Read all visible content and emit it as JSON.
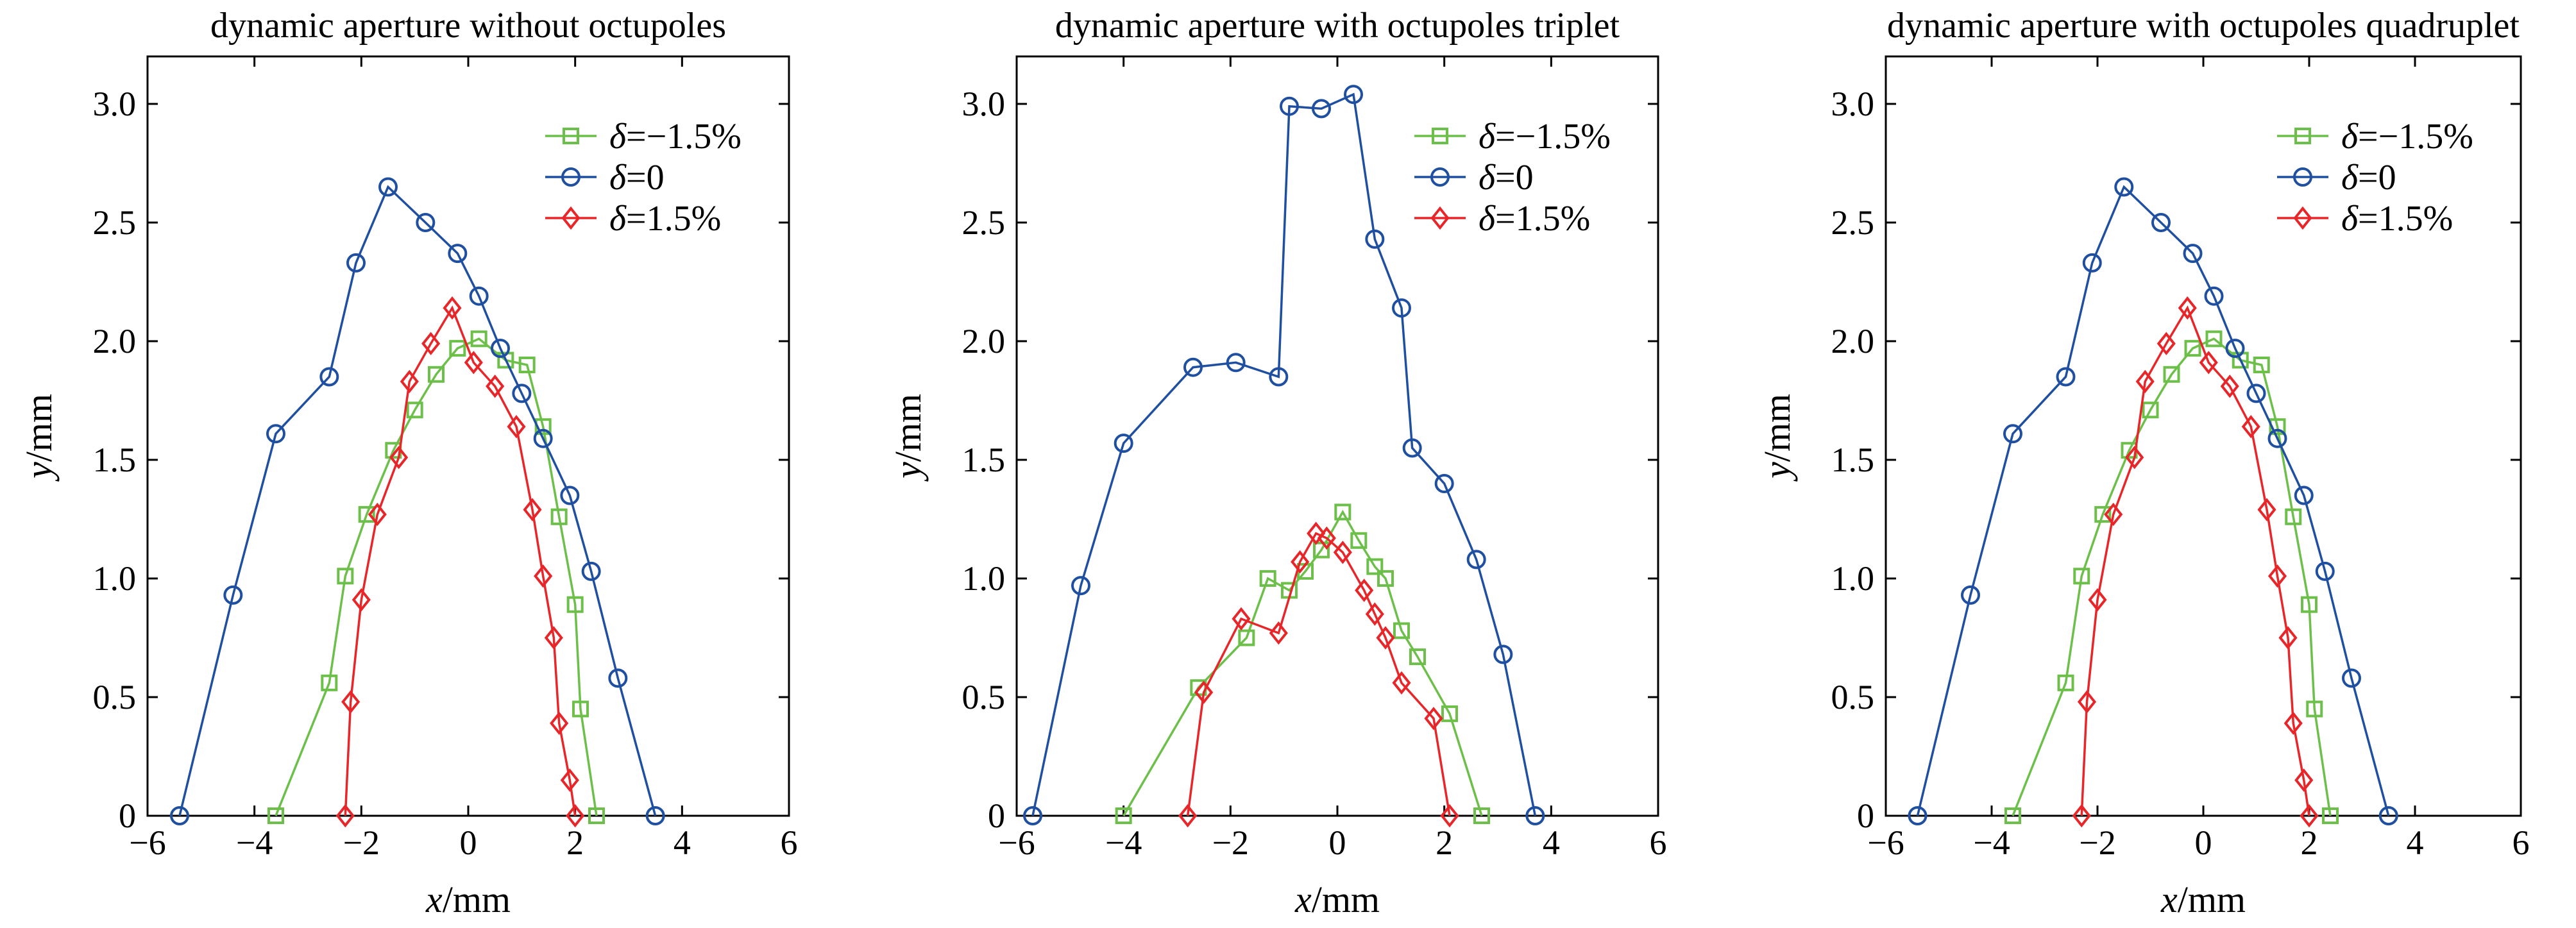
{
  "chart_data": [
    {
      "type": "line",
      "title": "dynamic aperture without octupoles",
      "xlabel": "x/mm",
      "ylabel": "y/mm",
      "xlim": [
        -6,
        6
      ],
      "ylim": [
        0,
        3.2
      ],
      "xticks": [
        -6,
        -4,
        -2,
        0,
        2,
        4,
        6
      ],
      "yticks": [
        0,
        0.5,
        1.0,
        1.5,
        2.0,
        2.5,
        3.0
      ],
      "grid": false,
      "legend_position": "top-right",
      "series": [
        {
          "name": "δ=−1.5%",
          "color": "#6cc04a",
          "marker": "square",
          "x": [
            -3.6,
            -2.6,
            -2.3,
            -1.9,
            -1.4,
            -1.0,
            -0.6,
            -0.2,
            0.2,
            0.7,
            1.1,
            1.4,
            1.7,
            2.0,
            2.1,
            2.4
          ],
          "y": [
            0,
            0.56,
            1.01,
            1.27,
            1.54,
            1.71,
            1.86,
            1.97,
            2.01,
            1.92,
            1.9,
            1.64,
            1.26,
            0.89,
            0.45,
            0
          ]
        },
        {
          "name": "δ=0",
          "color": "#1f4fa0",
          "marker": "circle",
          "x": [
            -5.4,
            -4.4,
            -3.6,
            -2.6,
            -2.1,
            -1.5,
            -0.8,
            -0.2,
            0.2,
            0.6,
            1.0,
            1.4,
            1.9,
            2.3,
            2.8,
            3.5
          ],
          "y": [
            0,
            0.93,
            1.61,
            1.85,
            2.33,
            2.65,
            2.5,
            2.37,
            2.19,
            1.97,
            1.78,
            1.59,
            1.35,
            1.03,
            0.58,
            0
          ]
        },
        {
          "name": "δ=1.5%",
          "color": "#e8262a",
          "marker": "diamond",
          "x": [
            -2.3,
            -2.2,
            -2.0,
            -1.7,
            -1.3,
            -1.1,
            -0.7,
            -0.3,
            0.1,
            0.5,
            0.9,
            1.2,
            1.4,
            1.6,
            1.7,
            1.9,
            2.0
          ],
          "y": [
            0,
            0.48,
            0.91,
            1.27,
            1.51,
            1.83,
            1.99,
            2.14,
            1.91,
            1.81,
            1.64,
            1.29,
            1.01,
            0.75,
            0.39,
            0.15,
            0
          ]
        }
      ]
    },
    {
      "type": "line",
      "title": "dynamic aperture with octupoles triplet",
      "xlabel": "x/mm",
      "ylabel": "y/mm",
      "xlim": [
        -6,
        6
      ],
      "ylim": [
        0,
        3.2
      ],
      "xticks": [
        -6,
        -4,
        -2,
        0,
        2,
        4,
        6
      ],
      "yticks": [
        0,
        0.5,
        1.0,
        1.5,
        2.0,
        2.5,
        3.0
      ],
      "grid": false,
      "legend_position": "top-right",
      "series": [
        {
          "name": "δ=−1.5%",
          "color": "#6cc04a",
          "marker": "square",
          "x": [
            -4.0,
            -2.6,
            -1.7,
            -1.3,
            -0.9,
            -0.6,
            -0.3,
            0.1,
            0.4,
            0.7,
            0.9,
            1.2,
            1.5,
            2.1,
            2.7
          ],
          "y": [
            0,
            0.54,
            0.75,
            1.0,
            0.95,
            1.03,
            1.12,
            1.28,
            1.16,
            1.05,
            1.0,
            0.78,
            0.67,
            0.43,
            0
          ]
        },
        {
          "name": "δ=0",
          "color": "#1f4fa0",
          "marker": "circle",
          "x": [
            -5.7,
            -4.8,
            -4.0,
            -2.7,
            -1.9,
            -1.1,
            -0.9,
            -0.3,
            0.3,
            0.7,
            1.2,
            1.4,
            2.0,
            2.6,
            3.1,
            3.7
          ],
          "y": [
            0,
            0.97,
            1.57,
            1.89,
            1.91,
            1.85,
            2.99,
            2.98,
            3.04,
            2.43,
            2.14,
            1.55,
            1.4,
            1.08,
            0.68,
            0
          ]
        },
        {
          "name": "δ=1.5%",
          "color": "#e8262a",
          "marker": "diamond",
          "x": [
            -2.8,
            -2.5,
            -1.8,
            -1.1,
            -0.7,
            -0.4,
            -0.2,
            0.1,
            0.5,
            0.7,
            0.9,
            1.2,
            1.8,
            2.1
          ],
          "y": [
            0,
            0.52,
            0.83,
            0.77,
            1.07,
            1.19,
            1.17,
            1.11,
            0.95,
            0.85,
            0.75,
            0.56,
            0.41,
            0
          ]
        }
      ]
    },
    {
      "type": "line",
      "title": "dynamic aperture with octupoles quadruplet",
      "xlabel": "x/mm",
      "ylabel": "y/mm",
      "xlim": [
        -6,
        6
      ],
      "ylim": [
        0,
        3.2
      ],
      "xticks": [
        -6,
        -4,
        -2,
        0,
        2,
        4,
        6
      ],
      "yticks": [
        0,
        0.5,
        1.0,
        1.5,
        2.0,
        2.5,
        3.0
      ],
      "grid": false,
      "legend_position": "top-right",
      "series": [
        {
          "name": "δ=−1.5%",
          "color": "#6cc04a",
          "marker": "square",
          "x": [
            -3.6,
            -2.6,
            -2.3,
            -1.9,
            -1.4,
            -1.0,
            -0.6,
            -0.2,
            0.2,
            0.7,
            1.1,
            1.4,
            1.7,
            2.0,
            2.1,
            2.4
          ],
          "y": [
            0,
            0.56,
            1.01,
            1.27,
            1.54,
            1.71,
            1.86,
            1.97,
            2.01,
            1.92,
            1.9,
            1.64,
            1.26,
            0.89,
            0.45,
            0
          ]
        },
        {
          "name": "δ=0",
          "color": "#1f4fa0",
          "marker": "circle",
          "x": [
            -5.4,
            -4.4,
            -3.6,
            -2.6,
            -2.1,
            -1.5,
            -0.8,
            -0.2,
            0.2,
            0.6,
            1.0,
            1.4,
            1.9,
            2.3,
            2.8,
            3.5
          ],
          "y": [
            0,
            0.93,
            1.61,
            1.85,
            2.33,
            2.65,
            2.5,
            2.37,
            2.19,
            1.97,
            1.78,
            1.59,
            1.35,
            1.03,
            0.58,
            0
          ]
        },
        {
          "name": "δ=1.5%",
          "color": "#e8262a",
          "marker": "diamond",
          "x": [
            -2.3,
            -2.2,
            -2.0,
            -1.7,
            -1.3,
            -1.1,
            -0.7,
            -0.3,
            0.1,
            0.5,
            0.9,
            1.2,
            1.4,
            1.6,
            1.7,
            1.9,
            2.0
          ],
          "y": [
            0,
            0.48,
            0.91,
            1.27,
            1.51,
            1.83,
            1.99,
            2.14,
            1.91,
            1.81,
            1.64,
            1.29,
            1.01,
            0.75,
            0.39,
            0.15,
            0
          ]
        }
      ]
    }
  ]
}
